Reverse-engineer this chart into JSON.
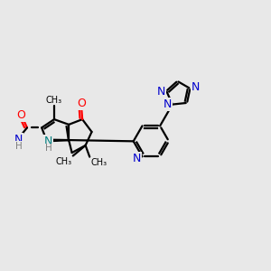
{
  "background_color": "#e8e8e8",
  "atom_colors": {
    "C": "#000000",
    "N_blue": "#0000cc",
    "N_teal": "#008080",
    "O": "#ff0000",
    "H_gray": "#7f7f7f"
  },
  "bond_lw": 1.6,
  "font_size": 9.0,
  "font_size_small": 7.5,
  "figsize": [
    3.0,
    3.0
  ],
  "dpi": 100,
  "xlim": [
    30,
    290
  ],
  "ylim": [
    80,
    235
  ]
}
